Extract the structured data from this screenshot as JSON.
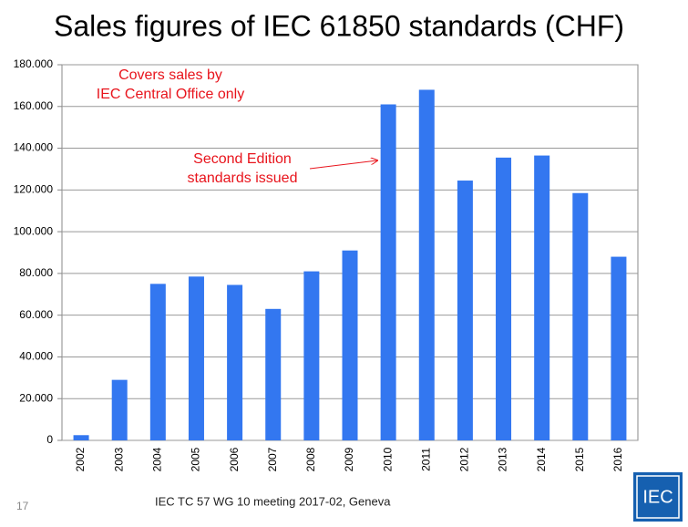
{
  "chart_data": {
    "type": "bar",
    "title": "Sales figures of IEC 61850 standards (CHF)",
    "categories": [
      "2002",
      "2003",
      "2004",
      "2005",
      "2006",
      "2007",
      "2008",
      "2009",
      "2010",
      "2011",
      "2012",
      "2013",
      "2014",
      "2015",
      "2016"
    ],
    "values": [
      2500,
      29000,
      75000,
      78500,
      74500,
      63000,
      81000,
      91000,
      161000,
      168000,
      124500,
      135500,
      136500,
      118500,
      88000
    ],
    "color": "#3377f0",
    "ylim": [
      0,
      180000
    ],
    "yticks": [
      0,
      {
        "value": 20000,
        "label": "20.000"
      },
      {
        "value": 40000,
        "label": "40.000"
      },
      {
        "value": 60000,
        "label": "60.000"
      },
      {
        "value": 80000,
        "label": "80.000"
      },
      {
        "value": 100000,
        "label": "100.000"
      },
      {
        "value": 120000,
        "label": "120.000"
      },
      {
        "value": 140000,
        "label": "140.000"
      },
      {
        "value": 160000,
        "label": "160.000"
      },
      {
        "value": 180000,
        "label": "180.000"
      }
    ],
    "grid": true,
    "annotations": [
      {
        "lines": [
          "Covers sales by",
          "IEC Central Office only"
        ],
        "color": "#e8141c"
      },
      {
        "lines": [
          "Second Edition",
          "standards issued"
        ],
        "color": "#e8141c"
      }
    ]
  },
  "footer": {
    "text": "IEC TC 57 WG 10 meeting 2017-02, Geneva",
    "page": "17",
    "logo": "IEC"
  }
}
